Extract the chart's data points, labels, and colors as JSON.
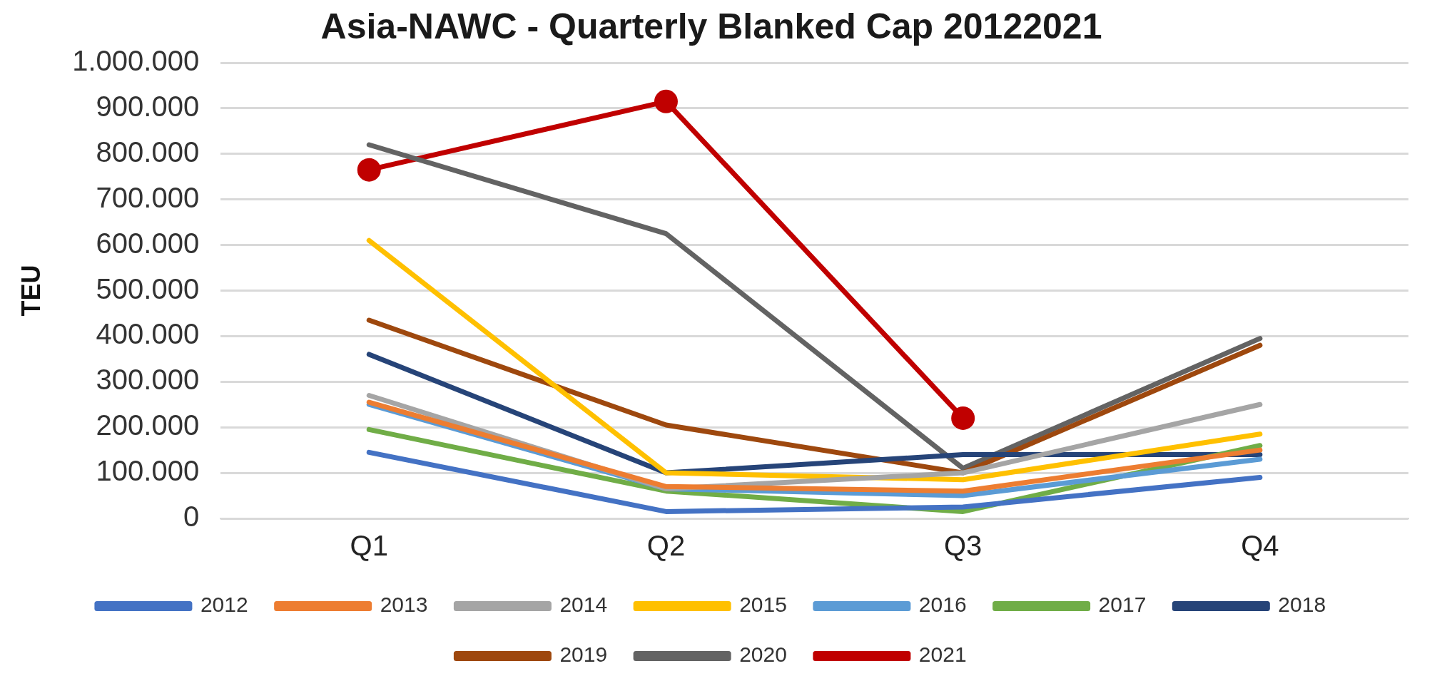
{
  "chart_data": {
    "type": "line",
    "title": "Asia-NAWC - Quarterly Blanked Cap 20122021",
    "ylabel": "TEU",
    "categories": [
      "Q1",
      "Q2",
      "Q3",
      "Q4"
    ],
    "ylim": [
      0,
      1000000
    ],
    "yticks": [
      {
        "value": 0,
        "label": "0"
      },
      {
        "value": 100000,
        "label": "100.000"
      },
      {
        "value": 200000,
        "label": "200.000"
      },
      {
        "value": 300000,
        "label": "300.000"
      },
      {
        "value": 400000,
        "label": "400.000"
      },
      {
        "value": 500000,
        "label": "500.000"
      },
      {
        "value": 600000,
        "label": "600.000"
      },
      {
        "value": 700000,
        "label": "700.000"
      },
      {
        "value": 800000,
        "label": "800.000"
      },
      {
        "value": 900000,
        "label": "900.000"
      },
      {
        "value": 1000000,
        "label": "1.000.000"
      }
    ],
    "grid": "y",
    "legend": "bottom",
    "marker": "none",
    "line_style": "solid",
    "series": [
      {
        "name": "2012",
        "color": "#4472c4",
        "values": [
          145000,
          15000,
          25000,
          90000
        ]
      },
      {
        "name": "2013",
        "color": "#ed7d31",
        "values": [
          255000,
          70000,
          60000,
          150000
        ]
      },
      {
        "name": "2014",
        "color": "#a5a5a5",
        "values": [
          270000,
          65000,
          100000,
          250000
        ]
      },
      {
        "name": "2015",
        "color": "#ffc000",
        "values": [
          610000,
          100000,
          85000,
          185000
        ]
      },
      {
        "name": "2016",
        "color": "#5b9bd5",
        "values": [
          250000,
          65000,
          50000,
          130000
        ]
      },
      {
        "name": "2017",
        "color": "#70ad47",
        "values": [
          195000,
          60000,
          15000,
          160000
        ]
      },
      {
        "name": "2018",
        "color": "#264478",
        "values": [
          360000,
          100000,
          140000,
          140000
        ]
      },
      {
        "name": "2019",
        "color": "#9e480e",
        "values": [
          435000,
          205000,
          100000,
          380000
        ]
      },
      {
        "name": "2020",
        "color": "#636363",
        "values": [
          820000,
          625000,
          110000,
          395000
        ]
      },
      {
        "name": "2021",
        "color": "#c00000",
        "marker": "circle",
        "values": [
          765000,
          915000,
          220000,
          null
        ]
      }
    ]
  }
}
